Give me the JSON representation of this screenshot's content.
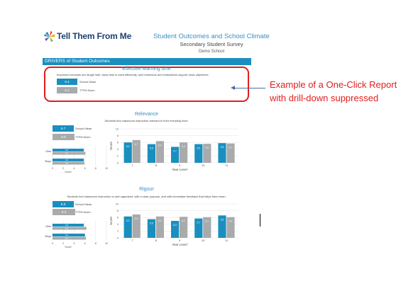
{
  "header": {
    "logo_text": "Tell Them From Me",
    "report_title": "Student Outcomes and School Climate",
    "survey": "Secondary Student Survey",
    "school": "Demo School"
  },
  "drivers_bar": "DRIVERS of Student Outcomes",
  "highlight": {
    "title": "Effective learning time",
    "description": "Important concepts are taught well, class time is used efficiently, and homework and evaluations support class objectives.",
    "school_value": "6.4",
    "school_label": "School Mean",
    "norm_value": "6.1",
    "norm_label": "TTFM Norm"
  },
  "annotation": {
    "line1": "Example of a One-Click Report",
    "line2": "with drill-down suppressed"
  },
  "colors": {
    "school": "#1a8fbf",
    "norm": "#a9aaab",
    "highlight_border": "#e31c1c",
    "annotation": "#e31c1c"
  },
  "sections": [
    {
      "title": "Relevance",
      "description": "Students find classroom instruction relevant to their everyday lives.",
      "school_value": "5.7",
      "school_label": "School Mean",
      "norm_value": "6.0",
      "norm_label": "TTFM Norm",
      "gender_chart": {
        "categories": [
          "Girls",
          "Boys"
        ],
        "school_values": [
          5.8,
          5.8
        ],
        "norm_values": [
          6.1,
          5.9
        ],
        "school_labels": [
          "5.8",
          "5.8"
        ],
        "norm_labels": [
          "6.1",
          "5.9"
        ],
        "xlim": [
          0,
          10
        ],
        "xticks": [
          "0",
          "2",
          "4",
          "6",
          "8",
          "10"
        ],
        "xlabel": "Score"
      },
      "chart_data": {
        "type": "bar",
        "categories": [
          "7",
          "8",
          "9",
          "10",
          "11"
        ],
        "series": [
          {
            "values": [
              6.0,
              5.5,
              4.7,
              5.5,
              5.8
            ],
            "labels": [
              "6.0",
              "5.5",
              "4.7",
              "5.5",
              "5.8"
            ]
          },
          {
            "values": [
              6.7,
              6.4,
              6.0,
              5.6,
              5.7
            ],
            "labels": [
              "6.7",
              "6.4",
              "6.0",
              "5.6",
              "5.7"
            ]
          }
        ],
        "xlabel": "Year Level",
        "ylabel": "Score",
        "ylim": [
          0,
          10
        ],
        "yticks": [
          "0",
          "2",
          "4",
          "6",
          "8",
          "10"
        ]
      }
    },
    {
      "title": "Rigour",
      "description": "Students feel classroom instruction is well organized, with a clear purpose, and with immediate feedback that helps them learn.",
      "school_value": "5.9",
      "school_label": "School Mean",
      "norm_value": "6.3",
      "norm_label": "TTFM Norm",
      "gender_chart": {
        "categories": [
          "Girls",
          "Boys"
        ],
        "school_values": [
          5.8,
          6.0
        ],
        "norm_values": [
          6.3,
          6.2
        ],
        "school_labels": [
          "5.8",
          "6.0"
        ],
        "norm_labels": [
          "6.3",
          "6.2"
        ],
        "xlim": [
          0,
          10
        ],
        "xticks": [
          "0",
          "2",
          "4",
          "6",
          "8",
          "10"
        ],
        "xlabel": "Score"
      },
      "chart_data": {
        "type": "bar",
        "categories": [
          "7",
          "8",
          "9",
          "10",
          "11"
        ],
        "series": [
          {
            "values": [
              6.3,
              5.5,
              5.0,
              5.7,
              6.6
            ],
            "labels": [
              "6.3",
              "5.5",
              "5.0",
              "5.7",
              "6.6"
            ]
          },
          {
            "values": [
              6.9,
              6.3,
              6.2,
              6.1,
              6.1
            ],
            "labels": [
              "6.9",
              "6.3",
              "6.2",
              "6.1",
              "6.1"
            ]
          }
        ],
        "xlabel": "Year Level",
        "ylabel": "Score",
        "ylim": [
          0,
          10
        ],
        "yticks": [
          "0",
          "2",
          "4",
          "6",
          "8",
          "10"
        ]
      }
    }
  ]
}
